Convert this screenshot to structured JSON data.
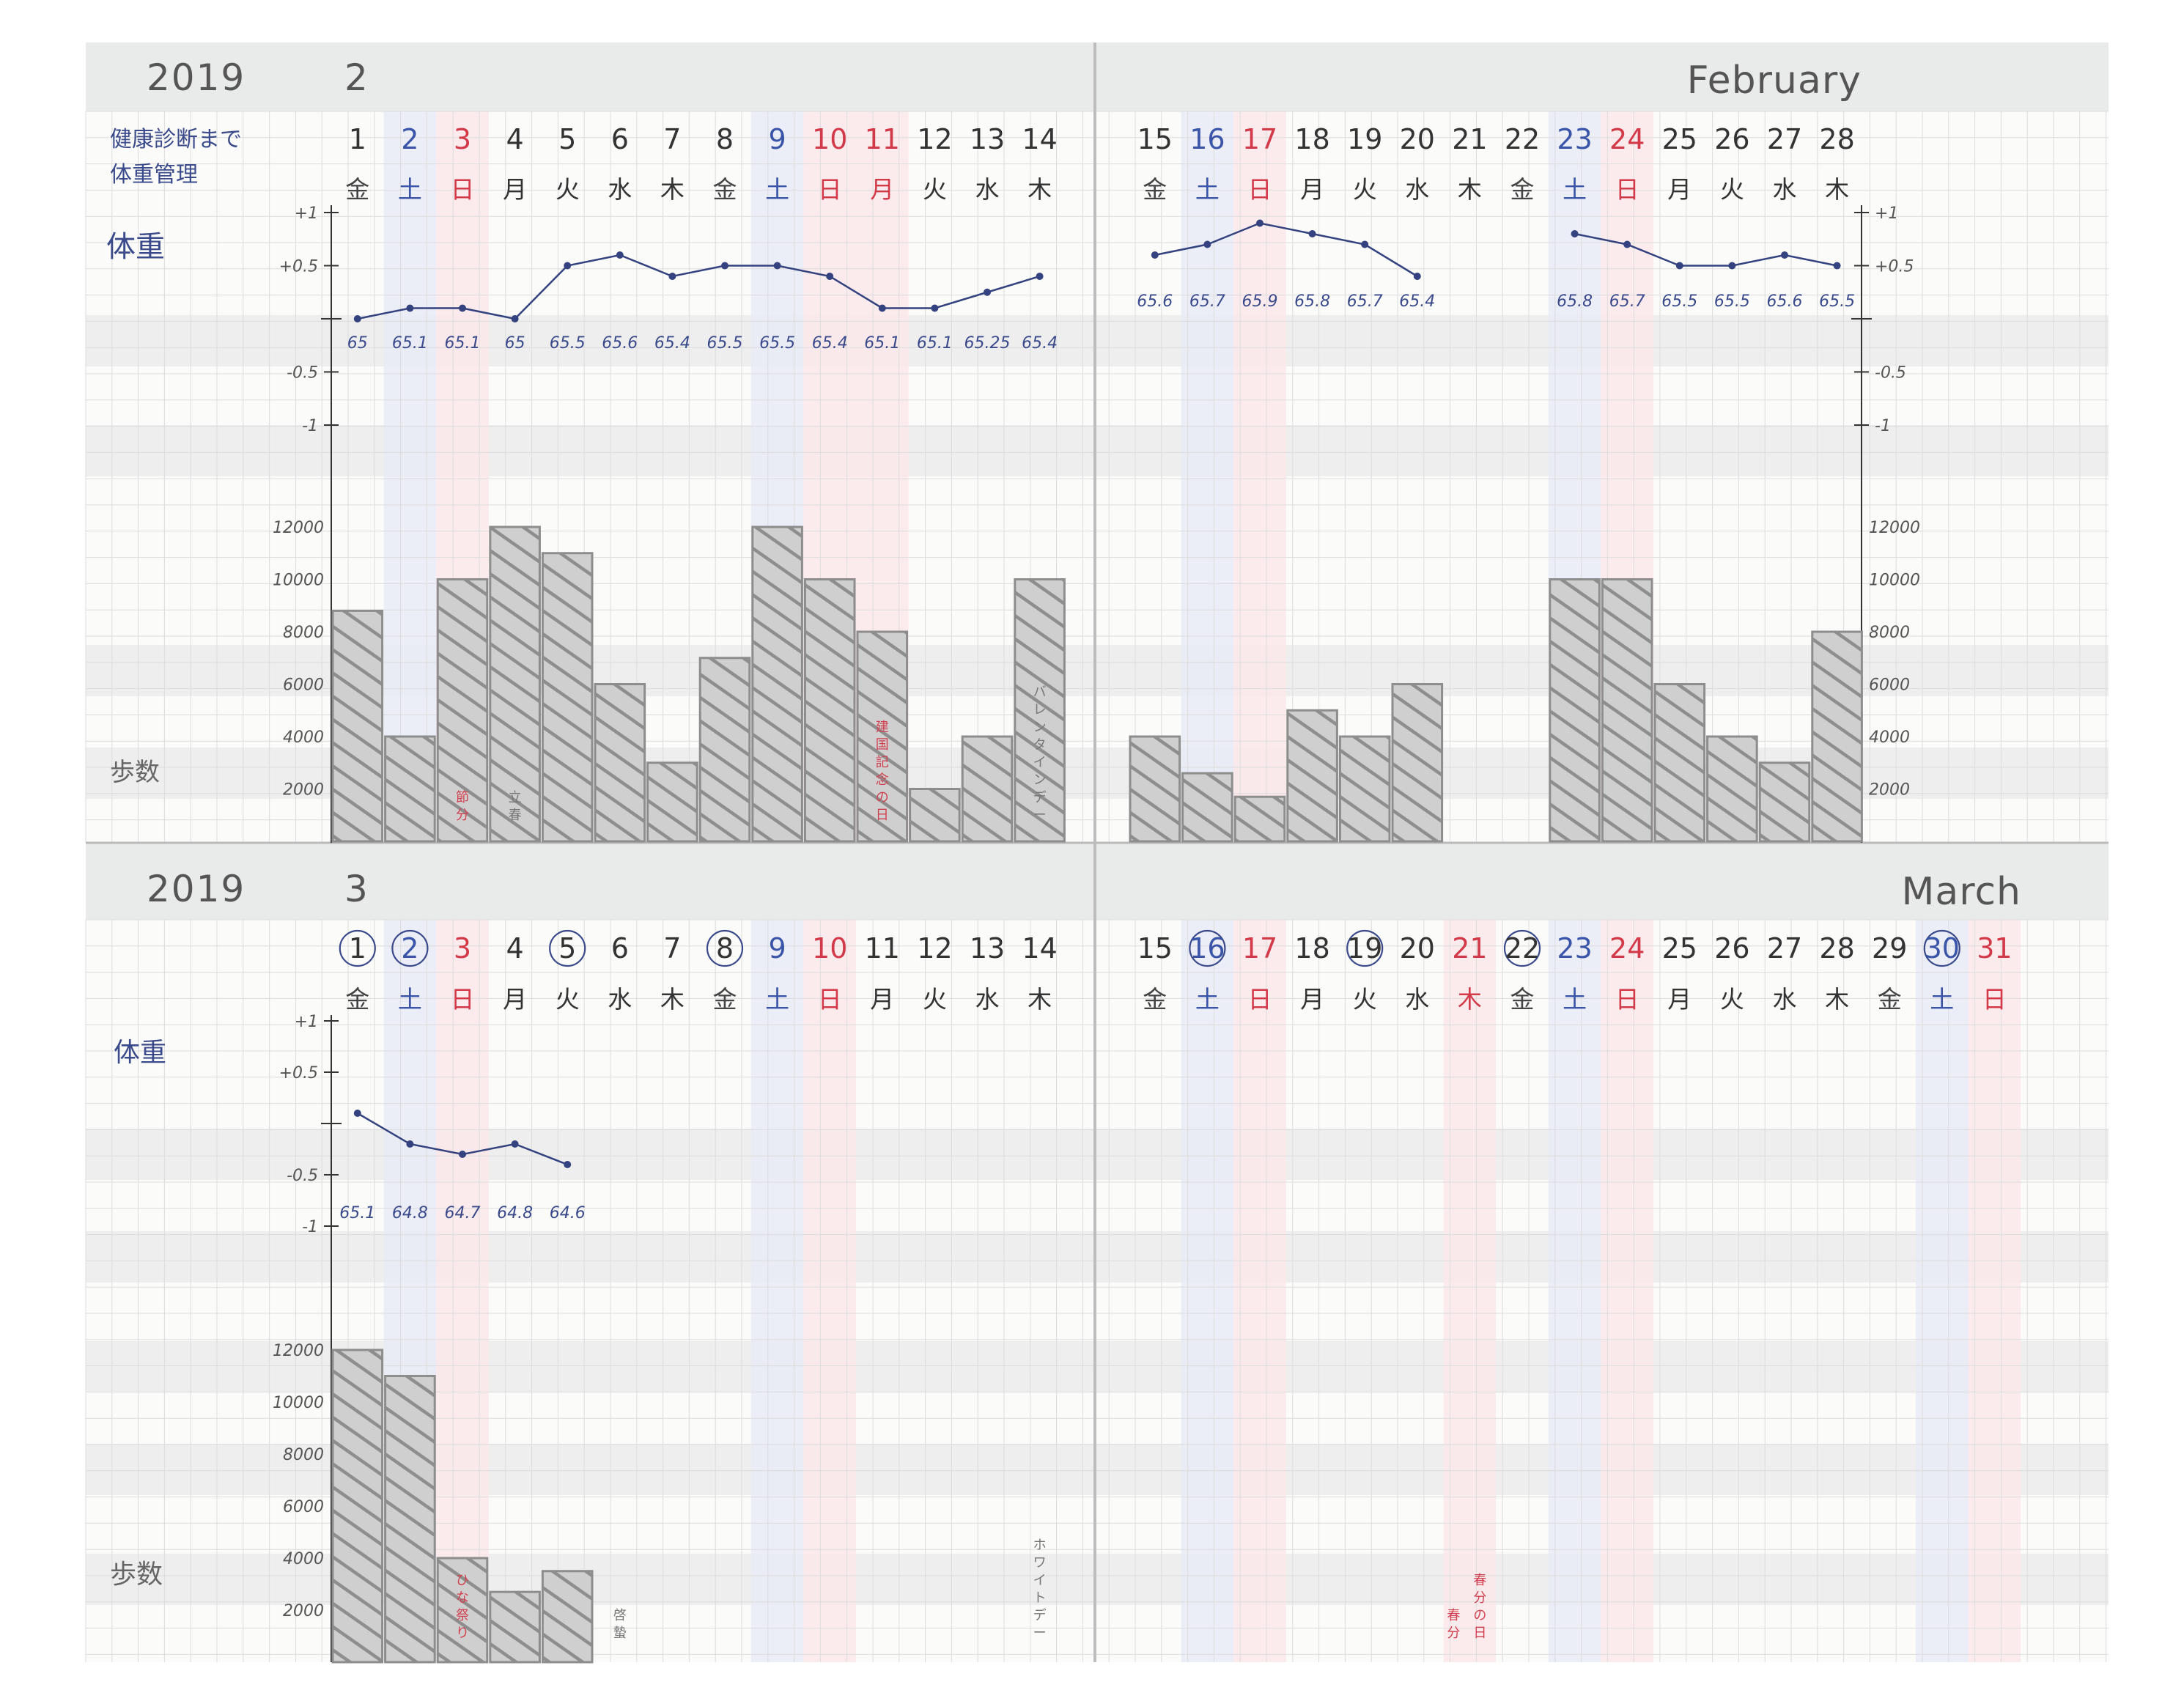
{
  "sections": [
    {
      "id": "feb",
      "year": "2019",
      "month": "2",
      "english_month": "February",
      "note_lines": [
        "健康診断まで",
        "体重管理"
      ],
      "weight_label": "体重",
      "steps_label": "歩数",
      "weight_ticks": [
        "+1",
        "+0.5",
        "-0.5",
        "-1"
      ],
      "steps_ticks": [
        "12000",
        "10000",
        "8000",
        "6000",
        "4000",
        "2000"
      ],
      "days": [
        {
          "d": "1",
          "w": "金",
          "t": "gold"
        },
        {
          "d": "2",
          "w": "土",
          "t": "sat"
        },
        {
          "d": "3",
          "w": "日",
          "t": "sun"
        },
        {
          "d": "4",
          "w": "月",
          "t": "wd"
        },
        {
          "d": "5",
          "w": "火",
          "t": "wd"
        },
        {
          "d": "6",
          "w": "水",
          "t": "wd"
        },
        {
          "d": "7",
          "w": "木",
          "t": "wd"
        },
        {
          "d": "8",
          "w": "金",
          "t": "gold"
        },
        {
          "d": "9",
          "w": "土",
          "t": "sat"
        },
        {
          "d": "10",
          "w": "日",
          "t": "sun"
        },
        {
          "d": "11",
          "w": "月",
          "t": "sun"
        },
        {
          "d": "12",
          "w": "火",
          "t": "wd"
        },
        {
          "d": "13",
          "w": "水",
          "t": "wd"
        },
        {
          "d": "14",
          "w": "木",
          "t": "wd"
        },
        {
          "d": "15",
          "w": "金",
          "t": "gold"
        },
        {
          "d": "16",
          "w": "土",
          "t": "sat"
        },
        {
          "d": "17",
          "w": "日",
          "t": "sun"
        },
        {
          "d": "18",
          "w": "月",
          "t": "wd"
        },
        {
          "d": "19",
          "w": "火",
          "t": "wd"
        },
        {
          "d": "20",
          "w": "水",
          "t": "wd"
        },
        {
          "d": "21",
          "w": "木",
          "t": "wd"
        },
        {
          "d": "22",
          "w": "金",
          "t": "gold"
        },
        {
          "d": "23",
          "w": "土",
          "t": "sat"
        },
        {
          "d": "24",
          "w": "日",
          "t": "sun"
        },
        {
          "d": "25",
          "w": "月",
          "t": "wd"
        },
        {
          "d": "26",
          "w": "火",
          "t": "wd"
        },
        {
          "d": "27",
          "w": "水",
          "t": "wd"
        },
        {
          "d": "28",
          "w": "木",
          "t": "wd"
        }
      ]
    },
    {
      "id": "mar",
      "year": "2019",
      "month": "3",
      "english_month": "March",
      "note_lines": [],
      "weight_label": "体重",
      "steps_label": "歩数",
      "weight_ticks": [
        "+1",
        "+0.5",
        "-0.5",
        "-1"
      ],
      "steps_ticks": [
        "12000",
        "10000",
        "8000",
        "6000",
        "4000",
        "2000"
      ],
      "days": [
        {
          "d": "1",
          "w": "金",
          "t": "gold",
          "c": true
        },
        {
          "d": "2",
          "w": "土",
          "t": "sat",
          "c": true
        },
        {
          "d": "3",
          "w": "日",
          "t": "sun"
        },
        {
          "d": "4",
          "w": "月",
          "t": "wd"
        },
        {
          "d": "5",
          "w": "火",
          "t": "wd",
          "c": true
        },
        {
          "d": "6",
          "w": "水",
          "t": "wd"
        },
        {
          "d": "7",
          "w": "木",
          "t": "wd"
        },
        {
          "d": "8",
          "w": "金",
          "t": "gold",
          "c": true
        },
        {
          "d": "9",
          "w": "土",
          "t": "sat"
        },
        {
          "d": "10",
          "w": "日",
          "t": "sun"
        },
        {
          "d": "11",
          "w": "月",
          "t": "wd"
        },
        {
          "d": "12",
          "w": "火",
          "t": "wd"
        },
        {
          "d": "13",
          "w": "水",
          "t": "wd"
        },
        {
          "d": "14",
          "w": "木",
          "t": "wd"
        },
        {
          "d": "15",
          "w": "金",
          "t": "gold"
        },
        {
          "d": "16",
          "w": "土",
          "t": "sat",
          "c": true
        },
        {
          "d": "17",
          "w": "日",
          "t": "sun"
        },
        {
          "d": "18",
          "w": "月",
          "t": "wd"
        },
        {
          "d": "19",
          "w": "火",
          "t": "wd",
          "c": true
        },
        {
          "d": "20",
          "w": "水",
          "t": "wd"
        },
        {
          "d": "21",
          "w": "木",
          "t": "sun"
        },
        {
          "d": "22",
          "w": "金",
          "t": "gold",
          "c": true
        },
        {
          "d": "23",
          "w": "土",
          "t": "sat"
        },
        {
          "d": "24",
          "w": "日",
          "t": "sun"
        },
        {
          "d": "25",
          "w": "月",
          "t": "wd"
        },
        {
          "d": "26",
          "w": "火",
          "t": "wd"
        },
        {
          "d": "27",
          "w": "水",
          "t": "wd"
        },
        {
          "d": "28",
          "w": "木",
          "t": "wd"
        },
        {
          "d": "29",
          "w": "金",
          "t": "gold"
        },
        {
          "d": "30",
          "w": "土",
          "t": "sat",
          "c": true
        },
        {
          "d": "31",
          "w": "日",
          "t": "sun"
        }
      ],
      "annotations": [
        {
          "day": 3,
          "text": "ひな祭り",
          "color": "red"
        },
        {
          "day": 6,
          "text": "啓蟄",
          "color": "gray"
        },
        {
          "day": 14,
          "text": "ホワイトデー",
          "color": "gray"
        },
        {
          "day": 21,
          "text": "春分の日",
          "color": "red"
        },
        {
          "day": 21,
          "text": "春分",
          "color": "red"
        }
      ]
    }
  ],
  "chart_data": [
    {
      "type": "line",
      "title": "",
      "xlabel": "",
      "ylabel": "体重",
      "ylim": [
        -1,
        1
      ],
      "x": [
        1,
        2,
        3,
        4,
        5,
        6,
        7,
        8,
        9,
        10,
        11,
        12,
        13,
        14,
        15,
        16,
        17,
        18,
        19,
        20,
        23,
        24,
        25,
        26,
        27,
        28
      ],
      "series": [
        {
          "deltas": [
            0,
            0.1,
            0.1,
            0,
            0.5,
            0.6,
            0.4,
            0.5,
            0.5,
            0.4,
            0.1,
            0.1,
            0.25,
            0.4,
            0.6,
            0.7,
            0.9,
            0.8,
            0.7,
            0.4,
            0.8,
            0.7,
            0.5,
            0.5,
            0.6,
            0.5
          ],
          "values": [
            "65",
            "65.1",
            "65.1",
            "65",
            "65.5",
            "65.6",
            "65.4",
            "65.5",
            "65.5",
            "65.4",
            "65.1",
            "65.1",
            "65.25",
            "65.4",
            "65.6",
            "65.7",
            "65.9",
            "65.8",
            "65.7",
            "65.4",
            "65.8",
            "65.7",
            "65.5",
            "65.5",
            "65.6",
            "65.5"
          ]
        }
      ]
    },
    {
      "type": "bar",
      "title": "",
      "xlabel": "",
      "ylabel": "歩数",
      "ylim": [
        0,
        12000
      ],
      "x": [
        1,
        2,
        3,
        4,
        5,
        6,
        7,
        8,
        9,
        10,
        11,
        12,
        13,
        14,
        15,
        16,
        17,
        18,
        19,
        20,
        23,
        24,
        25,
        26,
        27,
        28
      ],
      "series": [
        {
          "values": [
            8800,
            4000,
            10000,
            12000,
            11000,
            6000,
            3000,
            7000,
            12000,
            10000,
            8000,
            2000,
            4000,
            10000,
            4000,
            2600,
            1700,
            5000,
            4000,
            6000,
            10000,
            10000,
            6000,
            4000,
            3000,
            8000
          ]
        }
      ],
      "annotations": [
        {
          "day": 3,
          "text": "節分",
          "color": "red"
        },
        {
          "day": 4,
          "text": "立春",
          "color": "gray"
        },
        {
          "day": 11,
          "text": "建国記念の日",
          "color": "red"
        },
        {
          "day": 14,
          "text": "バレンタインデー",
          "color": "gray"
        }
      ]
    },
    {
      "type": "line",
      "title": "",
      "xlabel": "",
      "ylabel": "体重",
      "ylim": [
        -1,
        1
      ],
      "x": [
        1,
        2,
        3,
        4,
        5
      ],
      "series": [
        {
          "deltas": [
            0.1,
            -0.2,
            -0.3,
            -0.2,
            -0.4
          ],
          "values": [
            "65.1",
            "64.8",
            "64.7",
            "64.8",
            "64.6"
          ]
        }
      ]
    },
    {
      "type": "bar",
      "title": "",
      "xlabel": "",
      "ylabel": "歩数",
      "ylim": [
        0,
        12000
      ],
      "x": [
        1,
        2,
        3,
        4,
        5
      ],
      "series": [
        {
          "values": [
            12000,
            11000,
            4000,
            2700,
            3500
          ]
        }
      ]
    }
  ],
  "colors": {
    "sat_text": "#3a55a8",
    "sun_text": "#d23a4a",
    "weekday_text": "#333333",
    "gold_text": "#444444",
    "sat_band": "#e7eaf6",
    "sun_band": "#fbe7ea",
    "header_band": "#e9eaea",
    "grid": "#dcdcdc",
    "bar": "#a7a7a7",
    "line": "#34437f"
  }
}
